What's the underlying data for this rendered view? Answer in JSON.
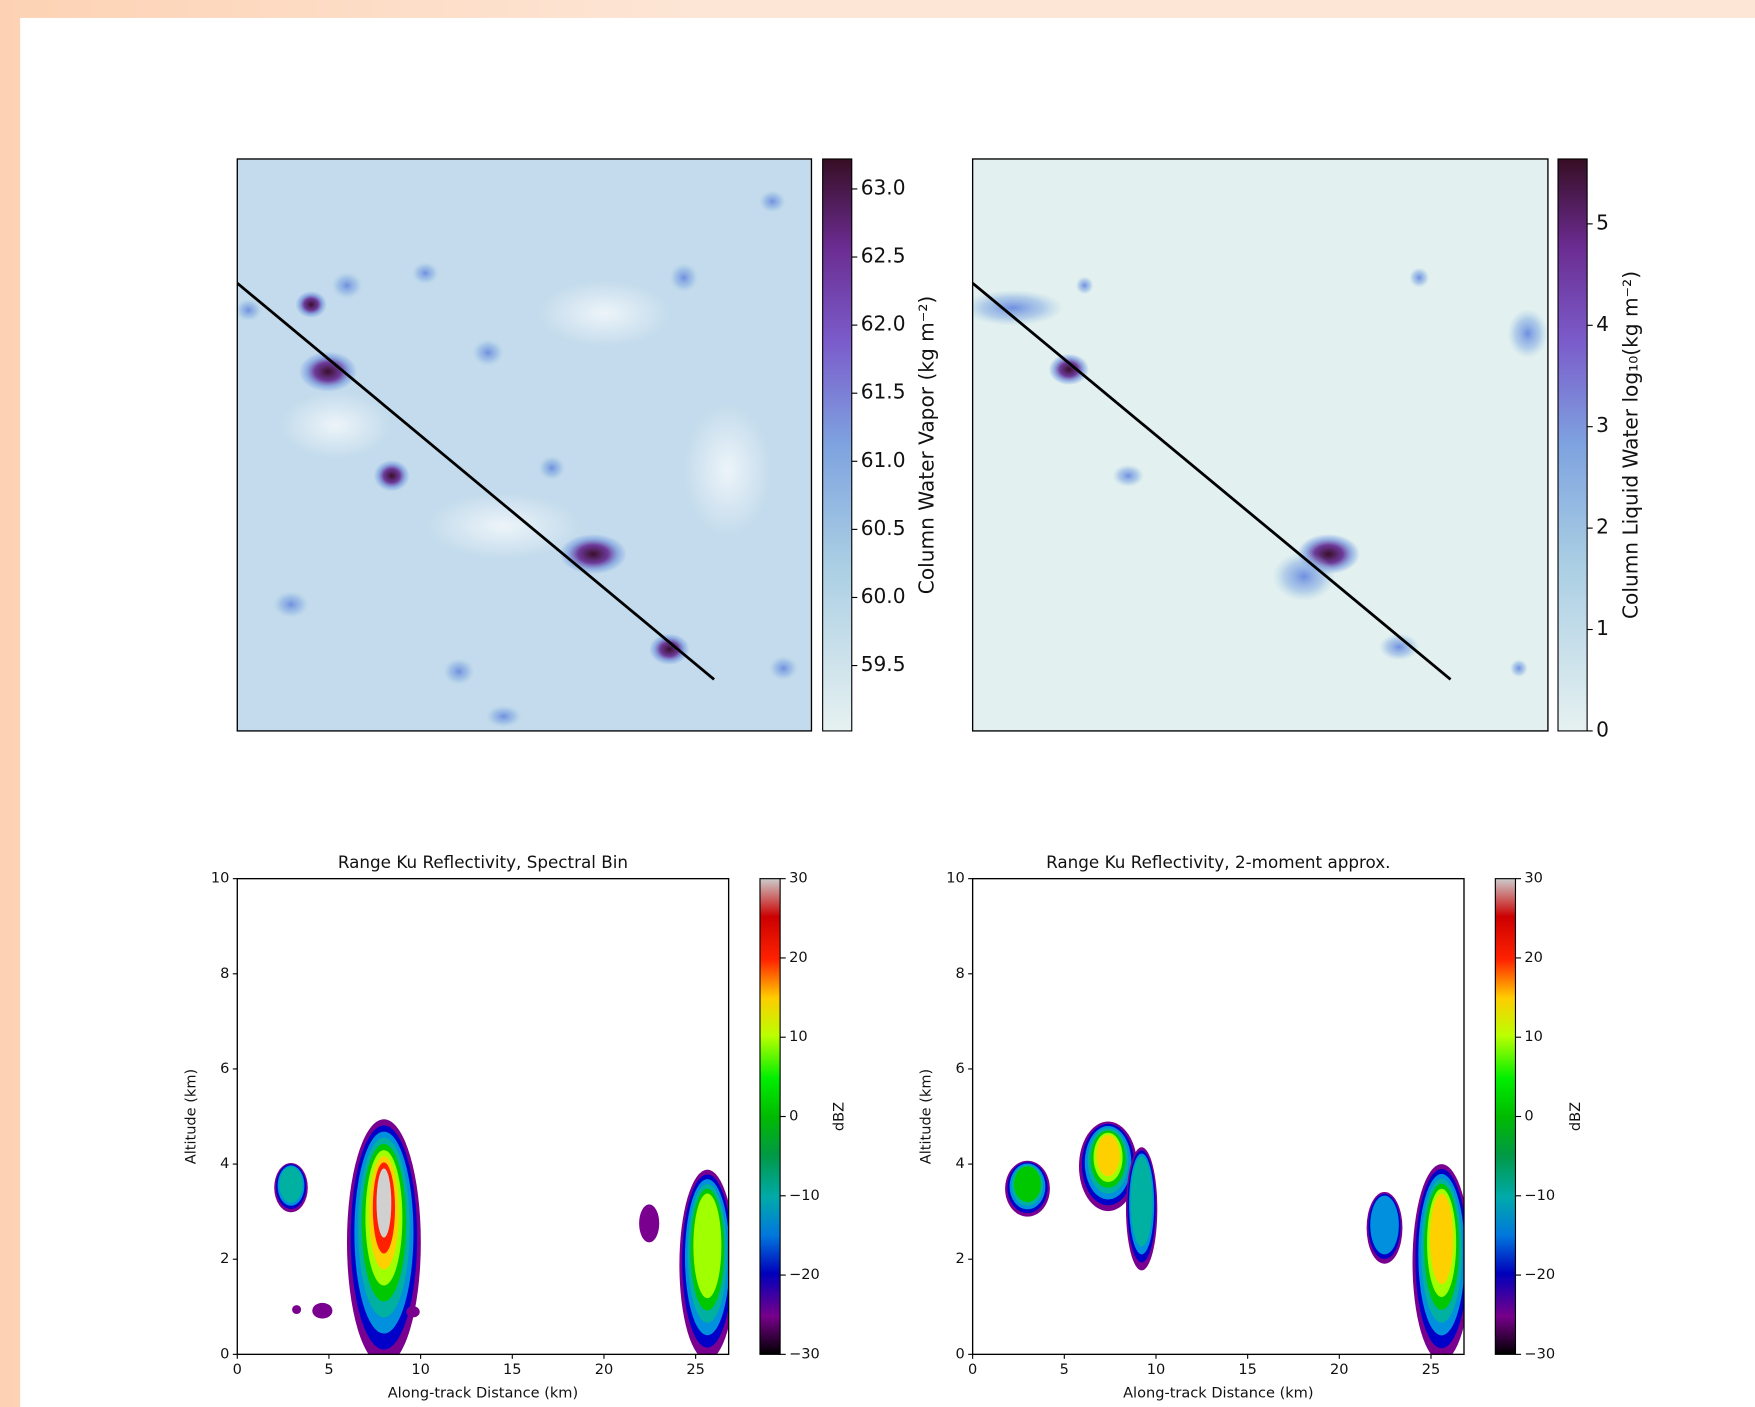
{
  "chart_data": [
    {
      "type": "heatmap",
      "colorbar_label": "Column Water Vapor (kg m⁻²)",
      "colormap": "dense",
      "clim": [
        59.02,
        63.22
      ],
      "cticks": [
        59.5,
        {
          "value": 60,
          "label": "60.0"
        },
        60.5,
        {
          "value": 61,
          "label": "61.0"
        },
        61.5,
        {
          "value": 62,
          "label": "62.0"
        },
        62.5,
        {
          "value": 63,
          "label": "63.0"
        }
      ]
    },
    {
      "type": "heatmap",
      "colorbar_label": "Column Liquid Water log₁₀(kg m⁻²)",
      "colormap": "dense",
      "clim": [
        0,
        5.64
      ],
      "cticks": [
        0,
        1,
        2,
        3,
        4,
        5
      ]
    },
    {
      "type": "heatmap",
      "title": "Range Ku Reflectivity, Spectral Bin",
      "xlabel": "Along-track Distance (km)",
      "ylabel": "Altitude (km)",
      "colorbar_label": "dBZ",
      "colormap": "nipy_spectral",
      "xlim": [
        0,
        26.8
      ],
      "ylim": [
        0,
        10
      ],
      "xticks": [
        0,
        5,
        10,
        15,
        20,
        25
      ],
      "yticks": [
        0,
        2,
        4,
        6,
        8,
        10
      ],
      "clim": [
        -30,
        30
      ],
      "cticks": [
        {
          "value": -30,
          "label": "−30"
        },
        {
          "value": -20,
          "label": "−20"
        },
        {
          "value": -10,
          "label": "−10"
        },
        0,
        10,
        20,
        30
      ]
    },
    {
      "type": "heatmap",
      "title": "Range Ku Reflectivity, 2-moment approx.",
      "xlabel": "Along-track Distance (km)",
      "ylabel": "Altitude (km)",
      "colorbar_label": "dBZ",
      "colormap": "nipy_spectral",
      "xlim": [
        0,
        26.8
      ],
      "ylim": [
        0,
        10
      ],
      "xticks": [
        0,
        5,
        10,
        15,
        20,
        25
      ],
      "yticks": [
        0,
        2,
        4,
        6,
        8,
        10
      ],
      "clim": [
        -30,
        30
      ],
      "cticks": [
        {
          "value": -30,
          "label": "−30"
        },
        {
          "value": -20,
          "label": "−20"
        },
        {
          "value": -10,
          "label": "−10"
        },
        0,
        10,
        20,
        30
      ]
    }
  ]
}
